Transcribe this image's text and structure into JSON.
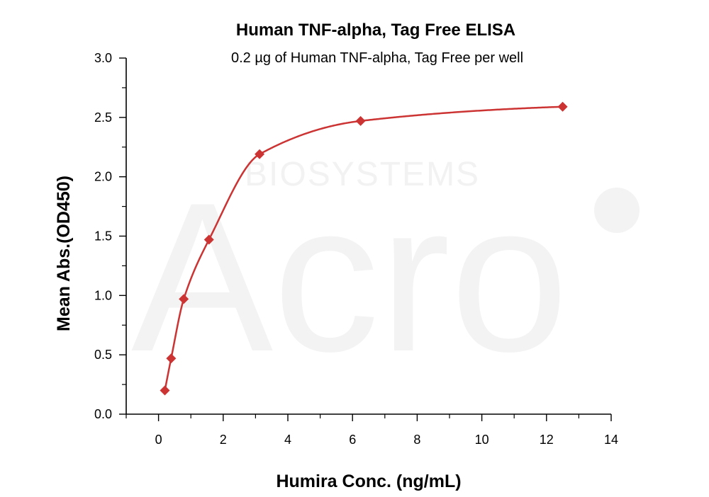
{
  "watermark": {
    "text": "BIOSYSTEMS",
    "letters": "Acro"
  },
  "colors": {
    "series": "#cc3333",
    "axis": "#000000",
    "watermark": "#f0f0f0"
  },
  "chart_data": {
    "type": "scatter",
    "title": "Human TNF-alpha, Tag Free ELISA",
    "subtitle": "0.2 µg of Human TNF-alpha, Tag Free per well",
    "xlabel": "Humira Conc. (ng/mL)",
    "ylabel": "Mean Abs.(OD450)",
    "xlim": [
      -1,
      14
    ],
    "ylim": [
      0,
      3.0
    ],
    "x_ticks": [
      0,
      2,
      4,
      6,
      8,
      10,
      12,
      14
    ],
    "y_ticks": [
      0.0,
      0.5,
      1.0,
      1.5,
      2.0,
      2.5,
      3.0
    ],
    "x_tick_labels": [
      "0",
      "2",
      "4",
      "6",
      "8",
      "10",
      "12",
      "14"
    ],
    "y_tick_labels": [
      "0.0",
      "0.5",
      "1.0",
      "1.5",
      "2.0",
      "2.5",
      "3.0"
    ],
    "grid": false,
    "marker": "diamond",
    "fit_curve": true,
    "series": [
      {
        "x": [
          0.195,
          0.39,
          0.78,
          1.56,
          3.125,
          6.25,
          12.5
        ],
        "y": [
          0.2,
          0.47,
          0.97,
          1.47,
          2.19,
          2.47,
          2.59
        ]
      }
    ]
  }
}
